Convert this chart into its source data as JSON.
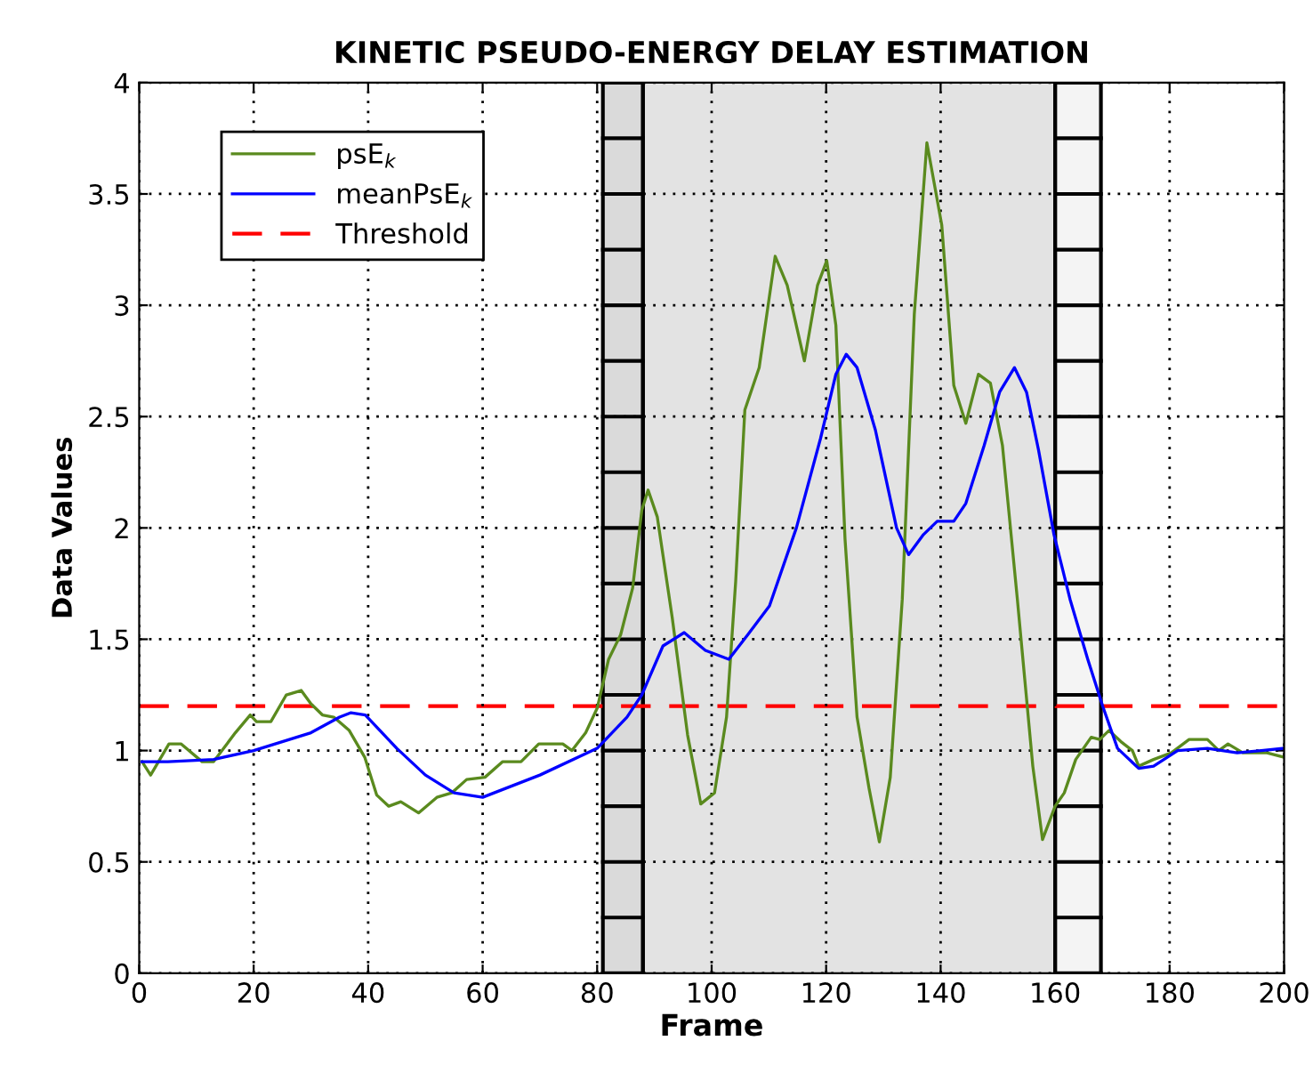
{
  "chart_data": {
    "type": "line",
    "title": "KINETIC PSEUDO-ENERGY DELAY ESTIMATION",
    "xlabel": "Frame",
    "ylabel": "Data Values",
    "series": [
      {
        "name": "psE$_{k}$",
        "color": "#5a8a1e",
        "x": [
          0.5,
          2,
          5.2,
          7.3,
          11,
          13,
          16.8,
          19.4,
          20.5,
          23,
          25.7,
          28.3,
          30,
          32,
          34,
          36.7,
          39.4,
          41.5,
          43.6,
          45.7,
          48.8,
          52,
          54.6,
          57.2,
          60.4,
          63.5,
          66.7,
          69.8,
          74,
          75.6,
          78,
          80,
          82,
          84.1,
          86.2,
          87.8,
          88.9,
          90.5,
          93.1,
          95.8,
          98.1,
          100.5,
          102.6,
          104.2,
          105.8,
          108.3,
          111.1,
          113.2,
          116.2,
          118.5,
          120.1,
          121.7,
          123.3,
          125.4,
          127.5,
          129.3,
          131.2,
          133.3,
          135.4,
          137.6,
          140.2,
          142.3,
          144.4,
          146.6,
          148.7,
          150.8,
          153.4,
          156.1,
          157.8,
          160,
          161.6,
          163.6,
          166.3,
          167.8,
          169.4,
          171.5,
          173.5,
          174.6,
          177.2,
          180.3,
          183.4,
          186.6,
          188.6,
          190.2,
          192.8,
          197,
          200
        ],
        "values": [
          0.95,
          0.89,
          1.03,
          1.03,
          0.95,
          0.95,
          1.08,
          1.16,
          1.13,
          1.13,
          1.25,
          1.27,
          1.21,
          1.16,
          1.15,
          1.09,
          0.97,
          0.8,
          0.75,
          0.77,
          0.72,
          0.79,
          0.81,
          0.87,
          0.88,
          0.95,
          0.95,
          1.03,
          1.03,
          1.0,
          1.08,
          1.19,
          1.41,
          1.52,
          1.73,
          2.08,
          2.17,
          2.05,
          1.6,
          1.07,
          0.76,
          0.81,
          1.15,
          1.76,
          2.53,
          2.72,
          3.22,
          3.09,
          2.75,
          3.09,
          3.2,
          2.91,
          1.95,
          1.15,
          0.83,
          0.59,
          0.88,
          1.68,
          2.96,
          3.73,
          3.36,
          2.64,
          2.47,
          2.69,
          2.65,
          2.37,
          1.68,
          0.93,
          0.6,
          0.75,
          0.81,
          0.96,
          1.06,
          1.05,
          1.09,
          1.04,
          1.0,
          0.93,
          0.96,
          0.99,
          1.05,
          1.05,
          1.0,
          1.03,
          0.99,
          0.99,
          0.97
        ]
      },
      {
        "name": "meanPsE$_{k}$",
        "color": "#0000ff",
        "x": [
          0.5,
          5,
          13,
          20,
          30,
          35,
          37,
          39.5,
          45,
          50,
          55,
          60,
          70,
          80,
          85.2,
          87.8,
          91.5,
          95.2,
          98.9,
          103,
          106.3,
          110.1,
          114.8,
          119,
          121.7,
          123.5,
          125.4,
          128.6,
          132.3,
          134.4,
          137,
          139.4,
          142.3,
          144.4,
          147.6,
          150.3,
          152.9,
          155,
          157.1,
          159.8,
          162.6,
          165.7,
          168.3,
          170.9,
          174.6,
          177.2,
          181.4,
          186.6,
          191.8,
          196,
          200
        ],
        "values": [
          0.95,
          0.95,
          0.96,
          1.0,
          1.08,
          1.15,
          1.17,
          1.16,
          1.01,
          0.89,
          0.81,
          0.79,
          0.89,
          1.01,
          1.15,
          1.25,
          1.47,
          1.53,
          1.45,
          1.41,
          1.52,
          1.65,
          2.0,
          2.4,
          2.69,
          2.78,
          2.72,
          2.44,
          2.0,
          1.88,
          1.97,
          2.03,
          2.03,
          2.11,
          2.37,
          2.61,
          2.72,
          2.61,
          2.35,
          1.97,
          1.68,
          1.41,
          1.2,
          1.01,
          0.92,
          0.93,
          1.0,
          1.01,
          0.99,
          1.0,
          1.01
        ]
      }
    ],
    "ref_lines": [
      {
        "axis": "y",
        "value": 1.2,
        "label": "Threshold",
        "color": "#ff0000",
        "line_style": "dashed"
      }
    ],
    "bands": [
      {
        "axis": "x",
        "from": 81,
        "to": 88,
        "color": "#dadada"
      },
      {
        "axis": "x",
        "from": 88,
        "to": 160,
        "color": "#e3e3e3"
      },
      {
        "axis": "x",
        "from": 160,
        "to": 168,
        "color": "#f4f4f4"
      }
    ],
    "xlim": [
      0,
      200
    ],
    "xticks": [
      0,
      20,
      40,
      60,
      80,
      100,
      120,
      140,
      160,
      180,
      200
    ],
    "ylim": [
      0,
      4
    ],
    "yticks": [
      0,
      0.5,
      1,
      1.5,
      2,
      2.5,
      3,
      3.5,
      4
    ],
    "grid": true,
    "legend": "top left",
    "line_style": "solid",
    "marker": "none"
  }
}
